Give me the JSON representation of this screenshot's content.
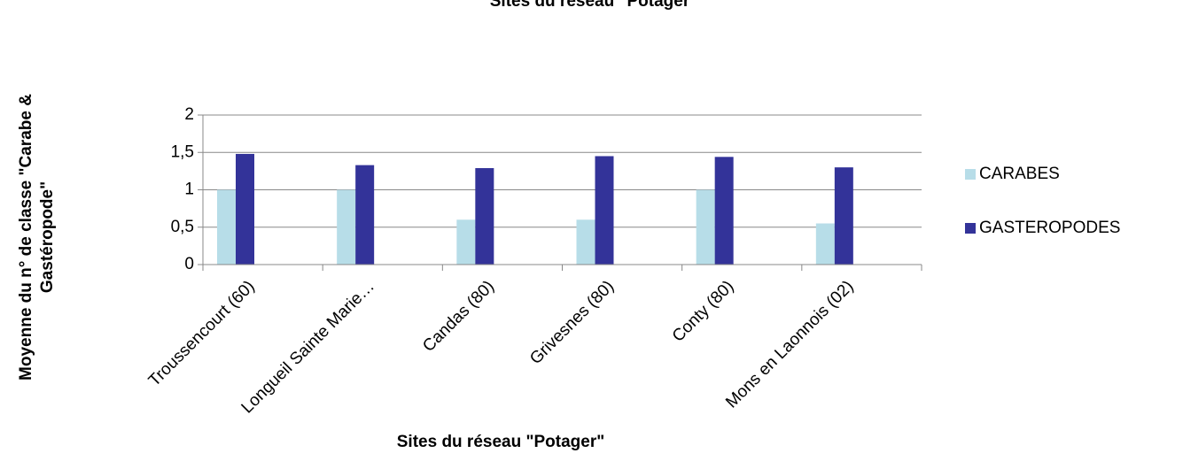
{
  "chart_data": {
    "type": "bar",
    "title": "Sites du réseau \"Potager\"",
    "xlabel": "Sites du réseau \"Potager\"",
    "ylabel": [
      "Moyenne du n° de classe \"Carabe &",
      "Gastéropode\""
    ],
    "categories": [
      "Troussencourt (60)",
      "Longueil Sainte Marie…",
      "Candas (80)",
      "Grivesnes (80)",
      "Conty (80)",
      "Mons en Laonnois (02)"
    ],
    "series": [
      {
        "name": "CARABES",
        "color": "#b7dde8",
        "values": [
          1,
          1,
          0.6,
          0.6,
          1,
          0.55
        ]
      },
      {
        "name": "GASTEROPODES",
        "color": "#333399",
        "values": [
          1.48,
          1.33,
          1.29,
          1.45,
          1.44,
          1.3
        ]
      }
    ],
    "ylim": [
      0,
      2
    ],
    "yticks": [
      0,
      {
        "value": 0.5,
        "label": "0,5"
      },
      1,
      {
        "value": 1.5,
        "label": "1,5"
      },
      2
    ],
    "grid": true,
    "legend": "right"
  }
}
